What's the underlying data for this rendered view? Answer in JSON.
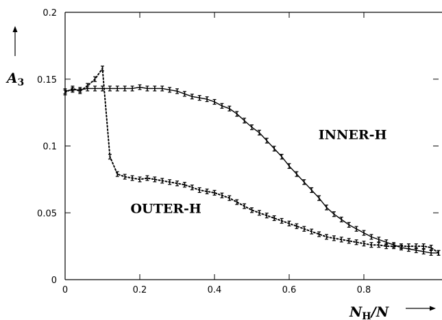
{
  "chart_data": {
    "type": "line",
    "title": "",
    "xlabel": "N_H/N",
    "ylabel": "A_3",
    "xlim": [
      0,
      1
    ],
    "ylim": [
      0,
      0.2
    ],
    "x_ticks": [
      "0",
      "0.2",
      "0.4",
      "0.6",
      "0.8"
    ],
    "y_ticks": [
      "0",
      "0.05",
      "0.1",
      "0.15",
      "0.2"
    ],
    "grid": false,
    "legend": "none",
    "colors": {
      "line": "#000000",
      "axes": "#000000",
      "background": "#ffffff"
    },
    "series": [
      {
        "name": "INNER-H",
        "style": "solid",
        "x": [
          0,
          0.02,
          0.04,
          0.06,
          0.08,
          0.1,
          0.12,
          0.14,
          0.16,
          0.18,
          0.2,
          0.22,
          0.24,
          0.26,
          0.28,
          0.3,
          0.32,
          0.34,
          0.36,
          0.38,
          0.4,
          0.42,
          0.44,
          0.46,
          0.48,
          0.5,
          0.52,
          0.54,
          0.56,
          0.58,
          0.6,
          0.62,
          0.64,
          0.66,
          0.68,
          0.7,
          0.72,
          0.74,
          0.76,
          0.78,
          0.8,
          0.82,
          0.84,
          0.86,
          0.88,
          0.9,
          0.92,
          0.94,
          0.96,
          0.98,
          1.0
        ],
        "y": [
          0.141,
          0.142,
          0.142,
          0.143,
          0.143,
          0.143,
          0.143,
          0.143,
          0.143,
          0.143,
          0.144,
          0.143,
          0.143,
          0.143,
          0.142,
          0.141,
          0.139,
          0.137,
          0.136,
          0.135,
          0.133,
          0.13,
          0.128,
          0.124,
          0.119,
          0.114,
          0.11,
          0.104,
          0.098,
          0.092,
          0.085,
          0.079,
          0.073,
          0.067,
          0.061,
          0.054,
          0.049,
          0.045,
          0.041,
          0.038,
          0.035,
          0.032,
          0.03,
          0.028,
          0.026,
          0.024,
          0.023,
          0.022,
          0.021,
          0.02,
          0.02
        ]
      },
      {
        "name": "OUTER-H",
        "style": "dotted",
        "x": [
          0,
          0.02,
          0.04,
          0.06,
          0.08,
          0.1,
          0.12,
          0.14,
          0.16,
          0.18,
          0.2,
          0.22,
          0.24,
          0.26,
          0.28,
          0.3,
          0.32,
          0.34,
          0.36,
          0.38,
          0.4,
          0.42,
          0.44,
          0.46,
          0.48,
          0.5,
          0.52,
          0.54,
          0.56,
          0.58,
          0.6,
          0.62,
          0.64,
          0.66,
          0.68,
          0.7,
          0.72,
          0.74,
          0.76,
          0.78,
          0.8,
          0.82,
          0.84,
          0.86,
          0.88,
          0.9,
          0.92,
          0.94,
          0.96,
          0.98,
          1.0
        ],
        "y": [
          0.14,
          0.143,
          0.141,
          0.145,
          0.15,
          0.158,
          0.092,
          0.079,
          0.077,
          0.076,
          0.075,
          0.076,
          0.075,
          0.074,
          0.073,
          0.072,
          0.071,
          0.069,
          0.067,
          0.066,
          0.065,
          0.063,
          0.061,
          0.058,
          0.055,
          0.052,
          0.05,
          0.048,
          0.046,
          0.044,
          0.042,
          0.04,
          0.038,
          0.036,
          0.034,
          0.032,
          0.031,
          0.03,
          0.029,
          0.028,
          0.027,
          0.026,
          0.026,
          0.025,
          0.025,
          0.025,
          0.025,
          0.025,
          0.025,
          0.024,
          0.02
        ]
      }
    ],
    "annotations": [
      {
        "text": "INNER-H",
        "x": 0.77,
        "y": 0.105
      },
      {
        "text": "OUTER-H",
        "x": 0.27,
        "y": 0.05
      }
    ]
  }
}
